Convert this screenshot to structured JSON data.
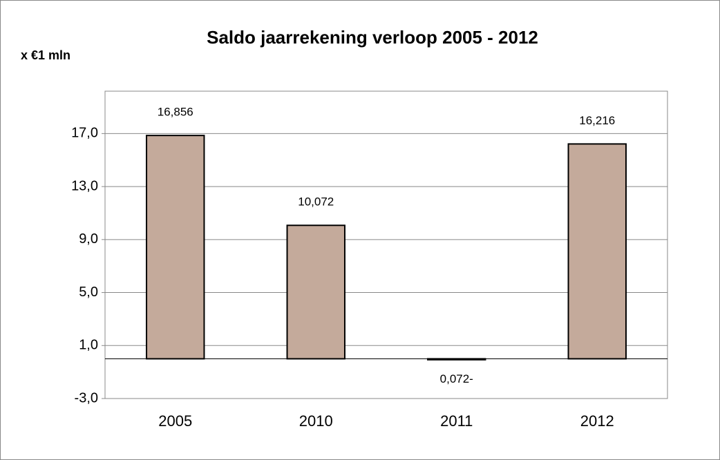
{
  "chart_data": {
    "type": "bar",
    "title": "Saldo jaarrekening verloop 2005 - 2012",
    "y_label": "x €1 mln",
    "categories": [
      "2005",
      "2010",
      "2011",
      "2012"
    ],
    "values": [
      16.856,
      10.072,
      -0.072,
      16.216
    ],
    "value_labels": [
      "16,856",
      "10,072",
      "0,072-",
      "16,216"
    ],
    "color": "#c4aa9b",
    "ylim": [
      -3,
      20.2
    ],
    "yticks": [
      {
        "value": -3,
        "label": "-3,0"
      },
      {
        "value": 1,
        "label": "1,0"
      },
      {
        "value": 5,
        "label": "5,0"
      },
      {
        "value": 9,
        "label": "9,0"
      },
      {
        "value": 13,
        "label": "13,0"
      },
      {
        "value": 17,
        "label": "17,0"
      }
    ],
    "grid": true
  }
}
